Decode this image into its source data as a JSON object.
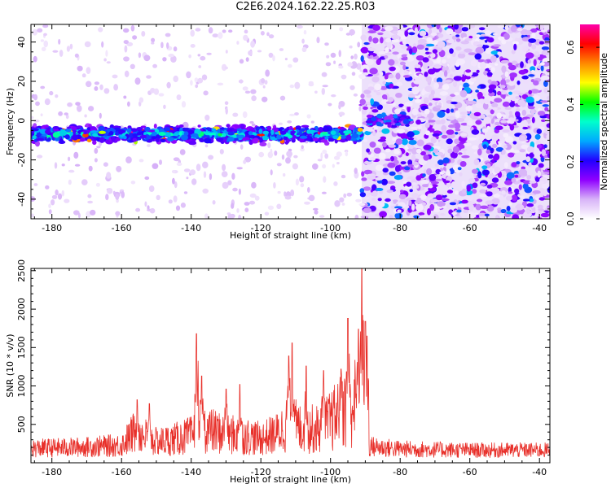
{
  "title": "C2E6.2024.162.22.25.R03",
  "chart_data": [
    {
      "type": "heatmap",
      "xlabel": "Height of straight line (km)",
      "ylabel": "Frequency (Hz)",
      "xlim": [
        -186,
        -37
      ],
      "ylim": [
        -50,
        49
      ],
      "x_ticks": [
        -180,
        -160,
        -140,
        -120,
        -100,
        -80,
        -60,
        -40
      ],
      "y_ticks": [
        -40,
        -20,
        0,
        20,
        40
      ],
      "colorbar": {
        "label": "Normalized spectral amplitude",
        "range": [
          0,
          0.68
        ],
        "ticks": [
          0.0,
          0.2,
          0.4,
          0.6
        ],
        "colormap": [
          "#ffffff",
          "#d8b4f8",
          "#8f00ff",
          "#2200ff",
          "#00aaff",
          "#00ffcc",
          "#00ff00",
          "#ffff00",
          "#ff8800",
          "#ff0000",
          "#ff00aa"
        ]
      },
      "features": [
        {
          "x_range": [
            -186,
            -91
          ],
          "freq_center": -7,
          "freq_halfwidth": 6,
          "amplitude": 0.35,
          "background": 0.05
        },
        {
          "x_range": [
            -91,
            -37
          ],
          "freq_center": 0,
          "freq_halfwidth": 50,
          "amplitude": 0.12,
          "background": 0.12
        },
        {
          "x_range": [
            -89,
            -77
          ],
          "freq_center": 0,
          "freq_halfwidth": 5,
          "amplitude": 0.22,
          "background": 0.12
        }
      ],
      "grid": false
    },
    {
      "type": "line",
      "xlabel": "Height of straight line (km)",
      "ylabel": "SNR (10 * v/v)",
      "xlim": [
        -186,
        -37
      ],
      "ylim": [
        0,
        2530
      ],
      "x_ticks": [
        -180,
        -160,
        -140,
        -120,
        -100,
        -80,
        -60,
        -40
      ],
      "y_ticks": [
        500,
        1000,
        1500,
        2000,
        2500
      ],
      "grid": false,
      "series": [
        {
          "color": "#e8302a",
          "envelope_x": [
            -186,
            -170,
            -160,
            -156,
            -150,
            -145,
            -140,
            -137,
            -134,
            -130,
            -125,
            -120,
            -115,
            -112,
            -109,
            -104,
            -100,
            -96,
            -93,
            -91,
            -89.5,
            -89,
            -80,
            -60,
            -37
          ],
          "envelope_y": [
            180,
            200,
            230,
            450,
            280,
            320,
            380,
            520,
            450,
            400,
            380,
            330,
            420,
            600,
            500,
            480,
            600,
            800,
            900,
            900,
            600,
            210,
            170,
            150,
            150
          ],
          "peaks_x": [
            -155.5,
            -152,
            -138.5,
            -137,
            -130,
            -126,
            -112,
            -111,
            -107,
            -102,
            -97,
            -95,
            -92,
            -91,
            -90,
            -89.5
          ],
          "peaks_y": [
            820,
            770,
            1680,
            1130,
            960,
            1020,
            1390,
            1560,
            1260,
            1200,
            1220,
            1880,
            1740,
            2530,
            1840,
            1650
          ]
        }
      ]
    }
  ]
}
